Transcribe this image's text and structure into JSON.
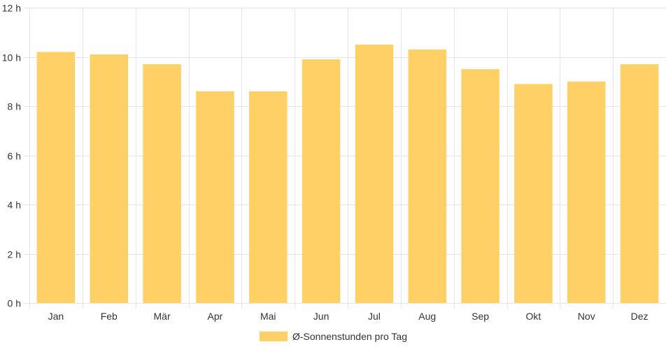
{
  "chart_data": {
    "type": "bar",
    "categories": [
      "Jan",
      "Feb",
      "Mär",
      "Apr",
      "Mai",
      "Jun",
      "Jul",
      "Aug",
      "Sep",
      "Okt",
      "Nov",
      "Dez"
    ],
    "series": [
      {
        "name": "Ø-Sonnenstunden pro Tag",
        "values": [
          10.2,
          10.1,
          9.7,
          8.6,
          8.6,
          9.9,
          10.5,
          10.3,
          9.5,
          8.9,
          9.0,
          9.7
        ],
        "color": "#fed065"
      }
    ],
    "ylim": [
      0,
      12
    ],
    "yticks": [
      0,
      2,
      4,
      6,
      8,
      10,
      12
    ],
    "ytick_labels": [
      "0 h",
      "2 h",
      "4 h",
      "6 h",
      "8 h",
      "10 h",
      "12 h"
    ],
    "grid": true,
    "grid_color": "#e5e5e5",
    "legend_position": "bottom-center"
  }
}
